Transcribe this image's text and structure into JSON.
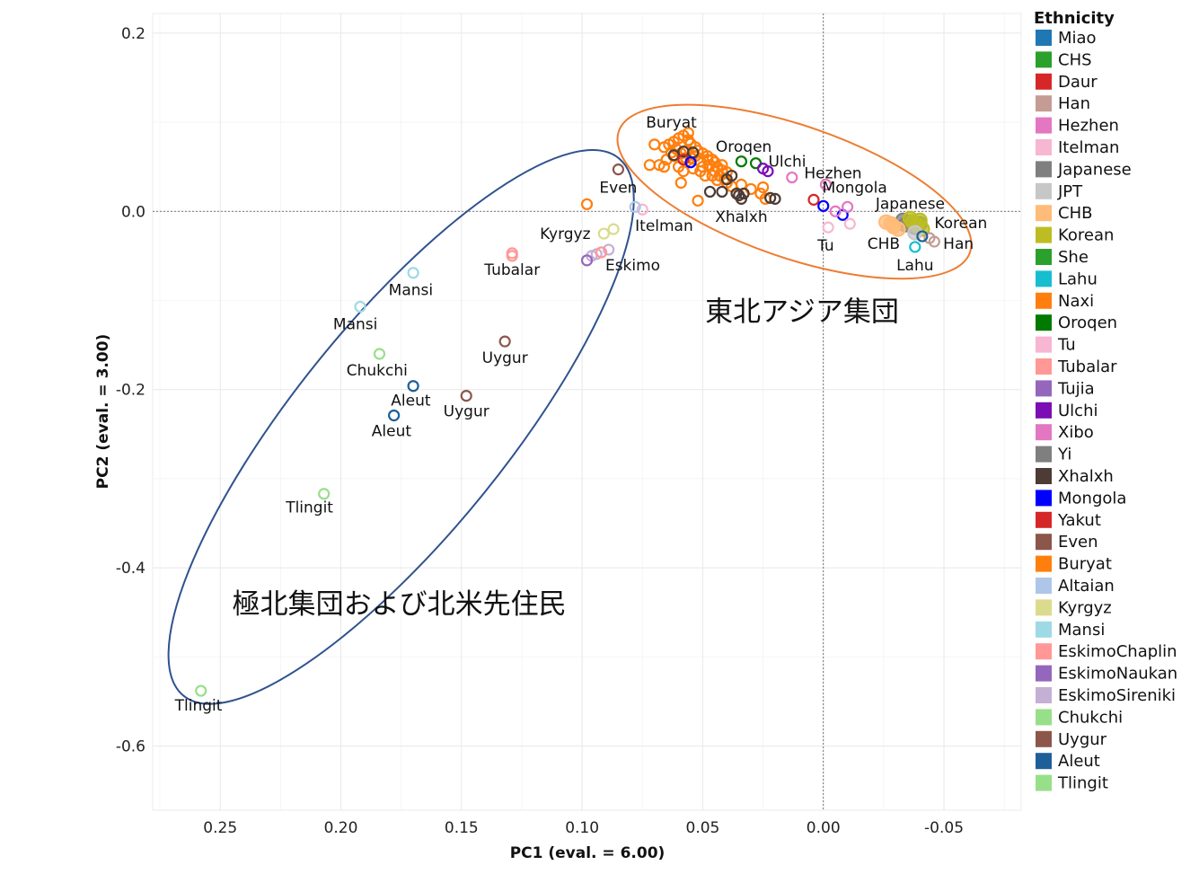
{
  "chart_data": {
    "type": "scatter",
    "xlabel": "PC1 (eval. = 6.00)",
    "ylabel": "PC2 (eval. = 3.00)",
    "xlim": [
      0.278,
      -0.082
    ],
    "ylim": [
      -0.672,
      0.222
    ],
    "xticks": [
      0.25,
      0.2,
      0.15,
      0.1,
      0.05,
      0.0,
      -0.05
    ],
    "xtick_labels": [
      "0.25",
      "0.20",
      "0.15",
      "0.10",
      "0.05",
      "0.00",
      "-0.05"
    ],
    "yticks": [
      0.2,
      0.0,
      -0.2,
      -0.4,
      -0.6
    ],
    "ytick_labels": [
      "0.2",
      "0.0",
      "-0.2",
      "-0.4",
      "-0.6"
    ],
    "grid": true,
    "reference_lines": {
      "x": 0,
      "y": 0
    },
    "legend": {
      "title": "Ethnicity",
      "position": "right",
      "entries": [
        {
          "name": "Miao",
          "color": "#1f77b4"
        },
        {
          "name": "CHS",
          "color": "#2ca02c"
        },
        {
          "name": "Daur",
          "color": "#d62728"
        },
        {
          "name": "Han",
          "color": "#c49c94"
        },
        {
          "name": "Hezhen",
          "color": "#e377c2"
        },
        {
          "name": "Itelman",
          "color": "#f7b6d2"
        },
        {
          "name": "Japanese",
          "color": "#7f7f7f"
        },
        {
          "name": "JPT",
          "color": "#c7c7c7"
        },
        {
          "name": "CHB",
          "color": "#ffbb78"
        },
        {
          "name": "Korean",
          "color": "#bcbd22"
        },
        {
          "name": "She",
          "color": "#2ca02c"
        },
        {
          "name": "Lahu",
          "color": "#17becf"
        },
        {
          "name": "Naxi",
          "color": "#ff7f0e"
        },
        {
          "name": "Oroqen",
          "color": "#007a00"
        },
        {
          "name": "Tu",
          "color": "#f7b6d2"
        },
        {
          "name": "Tubalar",
          "color": "#ff9896"
        },
        {
          "name": "Tujia",
          "color": "#9467bd"
        },
        {
          "name": "Ulchi",
          "color": "#7b0db5"
        },
        {
          "name": "Xibo",
          "color": "#e377c2"
        },
        {
          "name": "Yi",
          "color": "#7f7f7f"
        },
        {
          "name": "Xhalxh",
          "color": "#4d3b35"
        },
        {
          "name": "Mongola",
          "color": "#0000ff"
        },
        {
          "name": "Yakut",
          "color": "#d62728"
        },
        {
          "name": "Even",
          "color": "#8c564b"
        },
        {
          "name": "Buryat",
          "color": "#ff7f0e"
        },
        {
          "name": "Altaian",
          "color": "#aec7e8"
        },
        {
          "name": "Kyrgyz",
          "color": "#dbdb8d"
        },
        {
          "name": "Mansi",
          "color": "#9edae5"
        },
        {
          "name": "EskimoChaplin",
          "color": "#ff9896"
        },
        {
          "name": "EskimoNaukan",
          "color": "#9467bd"
        },
        {
          "name": "EskimoSireniki",
          "color": "#c5b0d5"
        },
        {
          "name": "Chukchi",
          "color": "#98df8a"
        },
        {
          "name": "Uygur",
          "color": "#8c564b"
        },
        {
          "name": "Aleut",
          "color": "#1f5f99"
        },
        {
          "name": "Tlingit",
          "color": "#98df8a"
        }
      ]
    },
    "point_labels": [
      {
        "text": "Buryat",
        "x": 0.063,
        "y": 0.1
      },
      {
        "text": "Oroqen",
        "x": 0.033,
        "y": 0.073
      },
      {
        "text": "Ulchi",
        "x": 0.015,
        "y": 0.056
      },
      {
        "text": "Hezhen",
        "x": -0.004,
        "y": 0.043
      },
      {
        "text": "Mongola",
        "x": -0.013,
        "y": 0.027
      },
      {
        "text": "Japanese",
        "x": -0.036,
        "y": 0.009
      },
      {
        "text": "Korean",
        "x": -0.057,
        "y": -0.013
      },
      {
        "text": "Han",
        "x": -0.056,
        "y": -0.036
      },
      {
        "text": "CHB",
        "x": -0.025,
        "y": -0.036
      },
      {
        "text": "Lahu",
        "x": -0.038,
        "y": -0.06
      },
      {
        "text": "Tu",
        "x": -0.001,
        "y": -0.038
      },
      {
        "text": "Xhalxh",
        "x": 0.034,
        "y": -0.006
      },
      {
        "text": "Itelman",
        "x": 0.066,
        "y": -0.016
      },
      {
        "text": "Even",
        "x": 0.085,
        "y": 0.027
      },
      {
        "text": "Kyrgyz",
        "x": 0.107,
        "y": -0.025
      },
      {
        "text": "Eskimo",
        "x": 0.079,
        "y": -0.06
      },
      {
        "text": "Tubalar",
        "x": 0.129,
        "y": -0.065
      },
      {
        "text": "Mansi",
        "x": 0.171,
        "y": -0.088
      },
      {
        "text": "Mansi",
        "x": 0.194,
        "y": -0.126
      },
      {
        "text": "Chukchi",
        "x": 0.185,
        "y": -0.178
      },
      {
        "text": "Aleut",
        "x": 0.171,
        "y": -0.212
      },
      {
        "text": "Aleut",
        "x": 0.179,
        "y": -0.246
      },
      {
        "text": "Uygur",
        "x": 0.132,
        "y": -0.164
      },
      {
        "text": "Uygur",
        "x": 0.148,
        "y": -0.224
      },
      {
        "text": "Tlingit",
        "x": 0.213,
        "y": -0.332
      },
      {
        "text": "Tlingit",
        "x": 0.259,
        "y": -0.554
      }
    ],
    "group_labels": [
      {
        "text": "東北アジア集団",
        "x": 0.049,
        "y": -0.112
      },
      {
        "text": "極北集団および北米先住民",
        "x": 0.245,
        "y": -0.44
      }
    ],
    "series": [
      {
        "name": "Buryat",
        "color": "#ff7f0e",
        "points": [
          [
            0.066,
            0.072
          ],
          [
            0.064,
            0.075
          ],
          [
            0.062,
            0.078
          ],
          [
            0.06,
            0.082
          ],
          [
            0.058,
            0.085
          ],
          [
            0.056,
            0.08
          ],
          [
            0.055,
            0.076
          ],
          [
            0.053,
            0.072
          ],
          [
            0.052,
            0.068
          ],
          [
            0.05,
            0.065
          ],
          [
            0.048,
            0.062
          ],
          [
            0.046,
            0.058
          ],
          [
            0.045,
            0.055
          ],
          [
            0.044,
            0.05
          ],
          [
            0.042,
            0.046
          ],
          [
            0.043,
            0.04
          ],
          [
            0.041,
            0.036
          ],
          [
            0.04,
            0.032
          ],
          [
            0.045,
            0.045
          ],
          [
            0.047,
            0.052
          ],
          [
            0.049,
            0.04
          ],
          [
            0.051,
            0.056
          ],
          [
            0.053,
            0.062
          ],
          [
            0.057,
            0.06
          ],
          [
            0.059,
            0.065
          ],
          [
            0.061,
            0.07
          ],
          [
            0.063,
            0.066
          ],
          [
            0.065,
            0.058
          ],
          [
            0.068,
            0.052
          ],
          [
            0.072,
            0.052
          ],
          [
            0.06,
            0.05
          ],
          [
            0.058,
            0.045
          ],
          [
            0.054,
            0.048
          ],
          [
            0.05,
            0.05
          ],
          [
            0.046,
            0.04
          ],
          [
            0.044,
            0.035
          ],
          [
            0.038,
            0.028
          ],
          [
            0.034,
            0.03
          ],
          [
            0.03,
            0.025
          ],
          [
            0.026,
            0.02
          ],
          [
            0.024,
            0.014
          ],
          [
            0.025,
            0.027
          ],
          [
            0.059,
            0.032
          ],
          [
            0.052,
            0.012
          ],
          [
            0.098,
            0.008
          ],
          [
            0.048,
            0.058
          ],
          [
            0.056,
            0.088
          ],
          [
            0.062,
            0.062
          ],
          [
            0.042,
            0.052
          ],
          [
            0.04,
            0.044
          ],
          [
            0.066,
            0.05
          ],
          [
            0.07,
            0.075
          ]
        ]
      },
      {
        "name": "Naxi",
        "color": "#ff7f0e",
        "points": [
          [
            0.057,
            0.068
          ],
          [
            0.055,
            0.06
          ],
          [
            0.051,
            0.045
          ]
        ]
      },
      {
        "name": "Xhalxh",
        "color": "#4d3b35",
        "points": [
          [
            0.062,
            0.063
          ],
          [
            0.058,
            0.067
          ],
          [
            0.054,
            0.066
          ],
          [
            0.04,
            0.036
          ],
          [
            0.038,
            0.04
          ],
          [
            0.042,
            0.022
          ],
          [
            0.047,
            0.022
          ],
          [
            0.036,
            0.02
          ],
          [
            0.034,
            0.014
          ],
          [
            0.022,
            0.015
          ],
          [
            0.02,
            0.014
          ],
          [
            0.033,
            0.02
          ],
          [
            0.035,
            0.018
          ]
        ]
      },
      {
        "name": "Daur",
        "color": "#d62728",
        "points": [
          [
            0.058,
            0.058
          ],
          [
            0.004,
            0.013
          ]
        ]
      },
      {
        "name": "Mongola",
        "color": "#0000ff",
        "points": [
          [
            0.055,
            0.055
          ],
          [
            0.0,
            0.006
          ],
          [
            -0.008,
            -0.004
          ]
        ]
      },
      {
        "name": "Oroqen",
        "color": "#007a00",
        "points": [
          [
            0.034,
            0.056
          ],
          [
            0.028,
            0.054
          ]
        ]
      },
      {
        "name": "Ulchi",
        "color": "#7b0db5",
        "points": [
          [
            0.025,
            0.048
          ],
          [
            0.023,
            0.045
          ]
        ]
      },
      {
        "name": "Hezhen",
        "color": "#e377c2",
        "points": [
          [
            0.013,
            0.038
          ],
          [
            -0.001,
            0.03
          ],
          [
            -0.01,
            0.005
          ],
          [
            -0.005,
            0.0
          ]
        ]
      },
      {
        "name": "Itelman",
        "color": "#f7b6d2",
        "points": [
          [
            0.075,
            0.002
          ],
          [
            -0.002,
            -0.018
          ],
          [
            -0.011,
            -0.014
          ]
        ]
      },
      {
        "name": "Altaian",
        "color": "#aec7e8",
        "points": [
          [
            0.078,
            0.005
          ]
        ]
      },
      {
        "name": "Even",
        "color": "#8c564b",
        "points": [
          [
            0.085,
            0.047
          ]
        ]
      },
      {
        "name": "Kyrgyz",
        "color": "#dbdb8d",
        "points": [
          [
            0.091,
            -0.025
          ],
          [
            0.087,
            -0.02
          ]
        ]
      },
      {
        "name": "EskimoSireniki",
        "color": "#c5b0d5",
        "points": [
          [
            0.089,
            -0.043
          ],
          [
            0.094,
            -0.048
          ],
          [
            0.096,
            -0.05
          ]
        ]
      },
      {
        "name": "EskimoNaukan",
        "color": "#9467bd",
        "points": [
          [
            0.098,
            -0.055
          ]
        ]
      },
      {
        "name": "EskimoChaplin",
        "color": "#ff9896",
        "points": [
          [
            0.092,
            -0.046
          ],
          [
            0.129,
            -0.047
          ],
          [
            0.129,
            -0.05
          ]
        ]
      },
      {
        "name": "Japanese",
        "color": "#7f7f7f",
        "points": [
          [
            -0.034,
            -0.015
          ],
          [
            -0.036,
            -0.012
          ],
          [
            -0.038,
            -0.018
          ],
          [
            -0.04,
            -0.014
          ],
          [
            -0.033,
            -0.01
          ]
        ]
      },
      {
        "name": "Korean",
        "color": "#bcbd22",
        "points": [
          [
            -0.037,
            -0.012
          ],
          [
            -0.039,
            -0.016
          ],
          [
            -0.041,
            -0.02
          ],
          [
            -0.036,
            -0.008
          ],
          [
            -0.04,
            -0.01
          ]
        ]
      },
      {
        "name": "CHB",
        "color": "#ffbb78",
        "points": [
          [
            -0.026,
            -0.012
          ],
          [
            -0.029,
            -0.017
          ],
          [
            -0.031,
            -0.02
          ],
          [
            -0.028,
            -0.014
          ]
        ]
      },
      {
        "name": "JPT",
        "color": "#c7c7c7",
        "points": [
          [
            -0.038,
            -0.024
          ]
        ]
      },
      {
        "name": "Han",
        "color": "#c49c94",
        "points": [
          [
            -0.044,
            -0.03
          ],
          [
            -0.046,
            -0.034
          ]
        ]
      },
      {
        "name": "Lahu",
        "color": "#17becf",
        "points": [
          [
            -0.038,
            -0.04
          ]
        ]
      },
      {
        "name": "Aleut",
        "color": "#1f5f99",
        "points": [
          [
            -0.041,
            -0.028
          ],
          [
            0.17,
            -0.196
          ],
          [
            0.178,
            -0.229
          ]
        ]
      },
      {
        "name": "Mansi",
        "color": "#9edae5",
        "points": [
          [
            0.17,
            -0.069
          ],
          [
            0.192,
            -0.107
          ]
        ]
      },
      {
        "name": "Chukchi",
        "color": "#98df8a",
        "points": [
          [
            0.184,
            -0.16
          ]
        ]
      },
      {
        "name": "Uygur",
        "color": "#8c564b",
        "points": [
          [
            0.132,
            -0.146
          ],
          [
            0.148,
            -0.207
          ]
        ]
      },
      {
        "name": "Tlingit",
        "color": "#98df8a",
        "points": [
          [
            0.207,
            -0.317
          ],
          [
            0.258,
            -0.538
          ]
        ]
      }
    ],
    "ellipses": [
      {
        "name": "east-asia-ellipse",
        "color": "#ed7d31",
        "cx": 0.012,
        "cy": 0.022,
        "rx": 0.077,
        "ry": 0.078
      },
      {
        "name": "arctic-ellipse",
        "color": "#2f528f",
        "cx": 0.175,
        "cy": -0.242,
        "rx": 0.09,
        "ry": 0.39
      }
    ]
  }
}
